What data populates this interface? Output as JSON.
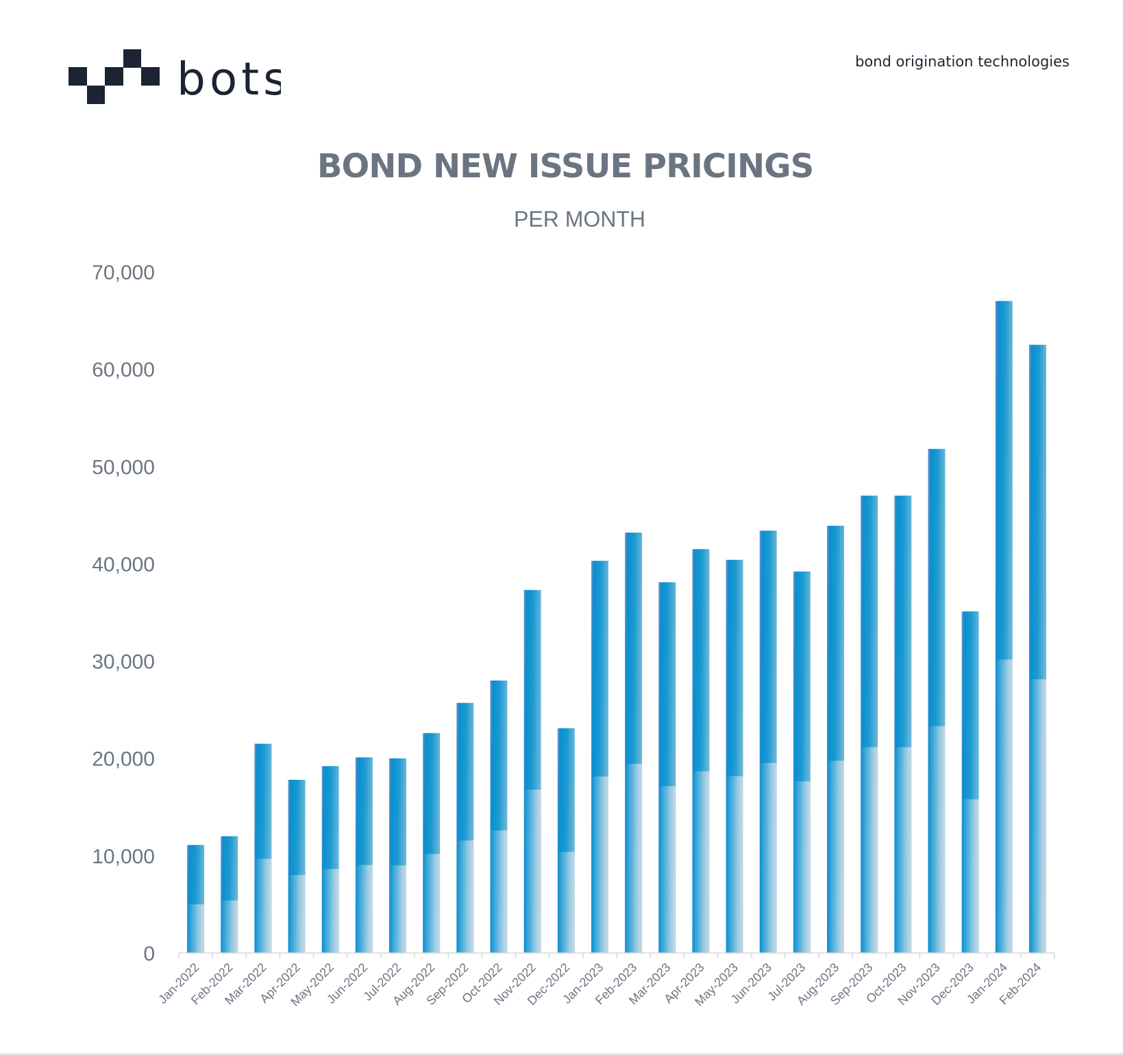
{
  "brand": {
    "logo_text": "bots",
    "tagline": "bond origination technologies",
    "logo_color": "#1c2333"
  },
  "chart_data": {
    "type": "bar",
    "title": "BOND NEW ISSUE PRICINGS",
    "subtitle": "PER MONTH",
    "xlabel": "",
    "ylabel": "",
    "ylim": [
      0,
      70000
    ],
    "yticks": [
      0,
      10000,
      20000,
      30000,
      40000,
      50000,
      60000,
      70000
    ],
    "ytick_labels": [
      "0",
      "10,000",
      "20,000",
      "30,000",
      "40,000",
      "50,000",
      "60,000",
      "70,000"
    ],
    "grid": false,
    "legend": "none",
    "bar_color": "#0a8fd0",
    "categories": [
      "Jan-2022",
      "Feb-2022",
      "Mar-2022",
      "Apr-2022",
      "May-2022",
      "Jun-2022",
      "Jul-2022",
      "Aug-2022",
      "Sep-2022",
      "Oct-2022",
      "Nov-2022",
      "Dec-2022",
      "Jan-2023",
      "Feb-2023",
      "Mar-2023",
      "Apr-2023",
      "May-2023",
      "Jun-2023",
      "Jul-2023",
      "Aug-2023",
      "Sep-2023",
      "Oct-2023",
      "Nov-2023",
      "Dec-2023",
      "Jan-2024",
      "Feb-2024"
    ],
    "values": [
      11100,
      12000,
      21500,
      17800,
      19200,
      20100,
      20000,
      22600,
      25700,
      28000,
      37300,
      23100,
      40300,
      43200,
      38100,
      41500,
      40400,
      43400,
      39200,
      43900,
      47000,
      47000,
      51800,
      35100,
      67000,
      62500
    ]
  }
}
